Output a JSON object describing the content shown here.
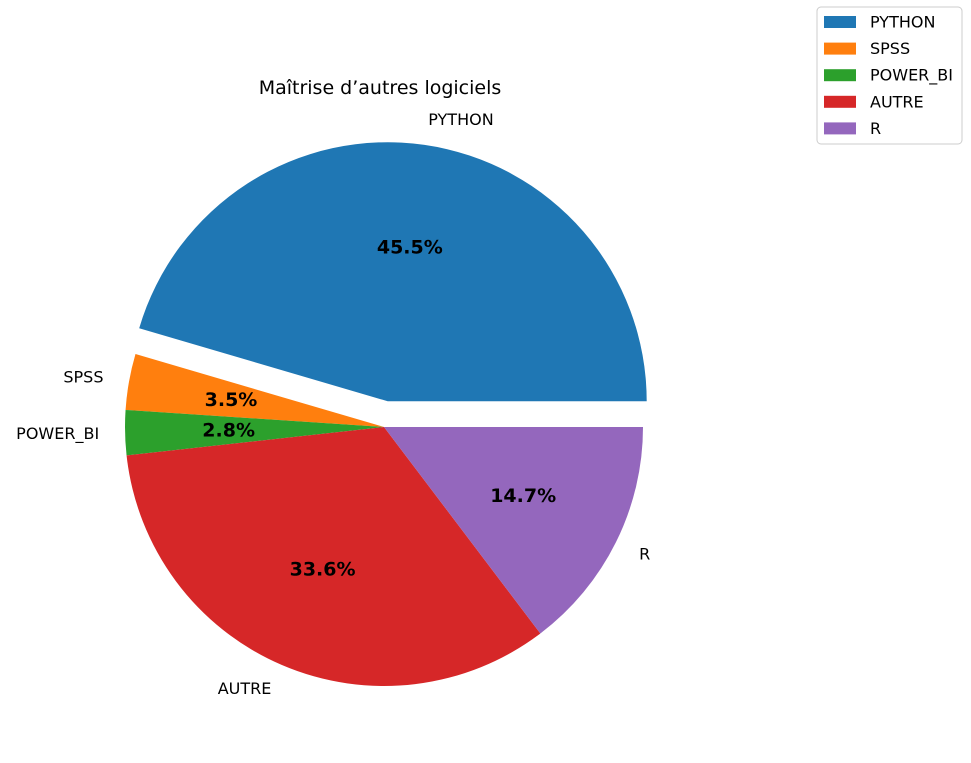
{
  "chart_data": {
    "type": "pie",
    "title": "Maîtrise d’autres logiciels",
    "categories": [
      "PYTHON",
      "SPSS",
      "POWER_BI",
      "AUTRE",
      "R"
    ],
    "values": [
      45.5,
      3.5,
      2.8,
      33.6,
      14.7
    ],
    "value_labels": [
      "45.5%",
      "3.5%",
      "2.8%",
      "33.6%",
      "14.7%"
    ],
    "colors": [
      "#1f77b4",
      "#ff7f0e",
      "#2ca02c",
      "#d62728",
      "#9467bd"
    ],
    "exploded": [
      "PYTHON"
    ],
    "start_angle_deg": 0,
    "direction": "counterclockwise",
    "legend": {
      "position": "top-right",
      "entries": [
        "PYTHON",
        "SPSS",
        "POWER_BI",
        "AUTRE",
        "R"
      ]
    }
  }
}
